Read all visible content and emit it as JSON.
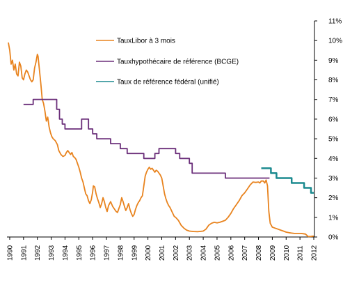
{
  "chart_data": {
    "type": "line",
    "title": "",
    "xlabel": "",
    "ylabel": "",
    "xlim": [
      1989.8,
      2012.05
    ],
    "ylim": [
      0,
      11
    ],
    "y_axis_side": "right",
    "y_tick_suffix": "%",
    "y_ticks": [
      0,
      1,
      2,
      3,
      4,
      5,
      6,
      7,
      8,
      9,
      10,
      11
    ],
    "x_tick_labels": [
      "1990",
      "1991",
      "1992",
      "1993",
      "1994",
      "1995",
      "1996",
      "1997",
      "1998",
      "1999",
      "2000",
      "2001",
      "2002",
      "2003",
      "2004",
      "2005",
      "2006",
      "2007",
      "2008",
      "2009",
      "2010",
      "2011",
      "2012"
    ],
    "grid": false,
    "legend_position": "top-center",
    "series": [
      {
        "name": "TauxLibor à 3 mois",
        "color": "#E8831E",
        "points": [
          [
            1989.9,
            9.9
          ],
          [
            1990.0,
            9.5
          ],
          [
            1990.1,
            8.8
          ],
          [
            1990.2,
            9.0
          ],
          [
            1990.3,
            8.5
          ],
          [
            1990.4,
            8.8
          ],
          [
            1990.5,
            8.3
          ],
          [
            1990.6,
            8.2
          ],
          [
            1990.7,
            8.9
          ],
          [
            1990.8,
            8.7
          ],
          [
            1990.9,
            8.1
          ],
          [
            1991.0,
            8.0
          ],
          [
            1991.1,
            8.3
          ],
          [
            1991.2,
            8.5
          ],
          [
            1991.3,
            8.4
          ],
          [
            1991.4,
            8.2
          ],
          [
            1991.5,
            8.0
          ],
          [
            1991.6,
            7.9
          ],
          [
            1991.7,
            8.0
          ],
          [
            1991.8,
            8.6
          ],
          [
            1991.9,
            8.9
          ],
          [
            1992.0,
            9.3
          ],
          [
            1992.05,
            9.2
          ],
          [
            1992.15,
            8.5
          ],
          [
            1992.25,
            7.8
          ],
          [
            1992.35,
            7.0
          ],
          [
            1992.45,
            6.8
          ],
          [
            1992.55,
            6.4
          ],
          [
            1992.65,
            5.9
          ],
          [
            1992.75,
            6.1
          ],
          [
            1992.85,
            5.6
          ],
          [
            1992.95,
            5.3
          ],
          [
            1993.05,
            5.1
          ],
          [
            1993.15,
            5.0
          ],
          [
            1993.3,
            4.9
          ],
          [
            1993.45,
            4.7
          ],
          [
            1993.55,
            4.4
          ],
          [
            1993.7,
            4.2
          ],
          [
            1993.85,
            4.1
          ],
          [
            1994.0,
            4.15
          ],
          [
            1994.1,
            4.3
          ],
          [
            1994.2,
            4.4
          ],
          [
            1994.3,
            4.3
          ],
          [
            1994.4,
            4.2
          ],
          [
            1994.5,
            4.3
          ],
          [
            1994.6,
            4.1
          ],
          [
            1994.7,
            4.05
          ],
          [
            1994.8,
            3.95
          ],
          [
            1994.9,
            3.75
          ],
          [
            1995.0,
            3.55
          ],
          [
            1995.1,
            3.3
          ],
          [
            1995.2,
            3.0
          ],
          [
            1995.3,
            2.8
          ],
          [
            1995.4,
            2.5
          ],
          [
            1995.5,
            2.2
          ],
          [
            1995.6,
            2.1
          ],
          [
            1995.7,
            1.85
          ],
          [
            1995.8,
            1.7
          ],
          [
            1995.9,
            1.9
          ],
          [
            1996.0,
            2.3
          ],
          [
            1996.05,
            2.6
          ],
          [
            1996.15,
            2.55
          ],
          [
            1996.25,
            2.2
          ],
          [
            1996.35,
            1.95
          ],
          [
            1996.45,
            1.75
          ],
          [
            1996.55,
            1.5
          ],
          [
            1996.65,
            1.7
          ],
          [
            1996.75,
            2.0
          ],
          [
            1996.85,
            1.8
          ],
          [
            1996.95,
            1.5
          ],
          [
            1997.05,
            1.3
          ],
          [
            1997.15,
            1.6
          ],
          [
            1997.3,
            1.8
          ],
          [
            1997.45,
            1.55
          ],
          [
            1997.6,
            1.4
          ],
          [
            1997.7,
            1.3
          ],
          [
            1997.8,
            1.25
          ],
          [
            1997.9,
            1.45
          ],
          [
            1998.0,
            1.65
          ],
          [
            1998.1,
            2.0
          ],
          [
            1998.2,
            1.8
          ],
          [
            1998.3,
            1.55
          ],
          [
            1998.4,
            1.35
          ],
          [
            1998.5,
            1.5
          ],
          [
            1998.6,
            1.7
          ],
          [
            1998.7,
            1.4
          ],
          [
            1998.8,
            1.2
          ],
          [
            1998.9,
            1.05
          ],
          [
            1999.0,
            1.15
          ],
          [
            1999.1,
            1.4
          ],
          [
            1999.2,
            1.6
          ],
          [
            1999.3,
            1.75
          ],
          [
            1999.4,
            1.85
          ],
          [
            1999.5,
            2.0
          ],
          [
            1999.6,
            2.1
          ],
          [
            1999.7,
            2.6
          ],
          [
            1999.8,
            3.1
          ],
          [
            1999.9,
            3.3
          ],
          [
            2000.0,
            3.45
          ],
          [
            2000.1,
            3.55
          ],
          [
            2000.2,
            3.45
          ],
          [
            2000.3,
            3.5
          ],
          [
            2000.4,
            3.4
          ],
          [
            2000.5,
            3.3
          ],
          [
            2000.6,
            3.4
          ],
          [
            2000.7,
            3.35
          ],
          [
            2000.8,
            3.25
          ],
          [
            2000.9,
            3.15
          ],
          [
            2001.0,
            3.0
          ],
          [
            2001.1,
            2.6
          ],
          [
            2001.2,
            2.2
          ],
          [
            2001.3,
            1.95
          ],
          [
            2001.4,
            1.75
          ],
          [
            2001.5,
            1.6
          ],
          [
            2001.6,
            1.5
          ],
          [
            2001.7,
            1.35
          ],
          [
            2001.8,
            1.2
          ],
          [
            2001.9,
            1.05
          ],
          [
            2002.0,
            1.0
          ],
          [
            2002.2,
            0.85
          ],
          [
            2002.4,
            0.6
          ],
          [
            2002.6,
            0.45
          ],
          [
            2002.8,
            0.35
          ],
          [
            2003.0,
            0.3
          ],
          [
            2003.3,
            0.28
          ],
          [
            2003.6,
            0.27
          ],
          [
            2004.0,
            0.3
          ],
          [
            2004.2,
            0.4
          ],
          [
            2004.4,
            0.6
          ],
          [
            2004.6,
            0.7
          ],
          [
            2004.8,
            0.75
          ],
          [
            2005.0,
            0.72
          ],
          [
            2005.2,
            0.75
          ],
          [
            2005.4,
            0.8
          ],
          [
            2005.6,
            0.85
          ],
          [
            2005.8,
            1.0
          ],
          [
            2006.0,
            1.2
          ],
          [
            2006.2,
            1.45
          ],
          [
            2006.4,
            1.65
          ],
          [
            2006.6,
            1.85
          ],
          [
            2006.8,
            2.1
          ],
          [
            2007.0,
            2.25
          ],
          [
            2007.2,
            2.45
          ],
          [
            2007.4,
            2.65
          ],
          [
            2007.6,
            2.8
          ],
          [
            2007.8,
            2.78
          ],
          [
            2008.0,
            2.8
          ],
          [
            2008.1,
            2.75
          ],
          [
            2008.2,
            2.85
          ],
          [
            2008.35,
            2.85
          ],
          [
            2008.45,
            2.75
          ],
          [
            2008.55,
            2.9
          ],
          [
            2008.65,
            2.6
          ],
          [
            2008.75,
            1.3
          ],
          [
            2008.85,
            0.7
          ],
          [
            2009.0,
            0.5
          ],
          [
            2009.2,
            0.45
          ],
          [
            2009.4,
            0.4
          ],
          [
            2009.6,
            0.35
          ],
          [
            2009.8,
            0.3
          ],
          [
            2010.0,
            0.25
          ],
          [
            2010.2,
            0.22
          ],
          [
            2010.4,
            0.2
          ],
          [
            2010.6,
            0.18
          ],
          [
            2010.8,
            0.18
          ],
          [
            2011.0,
            0.18
          ],
          [
            2011.2,
            0.17
          ],
          [
            2011.4,
            0.15
          ],
          [
            2011.5,
            0.08
          ],
          [
            2011.6,
            0.02
          ],
          [
            2011.8,
            0.03
          ],
          [
            2012.0,
            0.05
          ]
        ]
      },
      {
        "name": "Tauxhypothécaire de référence (BCGE)",
        "color": "#6B2F7A",
        "points": [
          [
            1991.0,
            6.75
          ],
          [
            1991.7,
            6.75
          ],
          [
            1991.7,
            7.0
          ],
          [
            1993.4,
            7.0
          ],
          [
            1993.4,
            6.5
          ],
          [
            1993.6,
            6.5
          ],
          [
            1993.6,
            6.0
          ],
          [
            1993.8,
            6.0
          ],
          [
            1993.8,
            5.75
          ],
          [
            1994.0,
            5.75
          ],
          [
            1994.0,
            5.5
          ],
          [
            1995.2,
            5.5
          ],
          [
            1995.2,
            6.0
          ],
          [
            1995.7,
            6.0
          ],
          [
            1995.7,
            5.5
          ],
          [
            1996.0,
            5.5
          ],
          [
            1996.0,
            5.25
          ],
          [
            1996.3,
            5.25
          ],
          [
            1996.3,
            5.0
          ],
          [
            1997.3,
            5.0
          ],
          [
            1997.3,
            4.75
          ],
          [
            1998.0,
            4.75
          ],
          [
            1998.0,
            4.5
          ],
          [
            1998.5,
            4.5
          ],
          [
            1998.5,
            4.25
          ],
          [
            1999.7,
            4.25
          ],
          [
            1999.7,
            4.0
          ],
          [
            2000.5,
            4.0
          ],
          [
            2000.5,
            4.25
          ],
          [
            2000.8,
            4.25
          ],
          [
            2000.8,
            4.5
          ],
          [
            2002.0,
            4.5
          ],
          [
            2002.0,
            4.25
          ],
          [
            2002.3,
            4.25
          ],
          [
            2002.3,
            4.0
          ],
          [
            2003.0,
            4.0
          ],
          [
            2003.0,
            3.75
          ],
          [
            2003.2,
            3.75
          ],
          [
            2003.2,
            3.25
          ],
          [
            2005.6,
            3.25
          ],
          [
            2005.6,
            3.0
          ],
          [
            2008.8,
            3.0
          ]
        ]
      },
      {
        "name": "Taux de référence fédéral (unifié)",
        "color": "#1B8A8F",
        "points": [
          [
            2008.2,
            3.5
          ],
          [
            2008.9,
            3.5
          ],
          [
            2008.9,
            3.25
          ],
          [
            2009.3,
            3.25
          ],
          [
            2009.3,
            3.0
          ],
          [
            2010.4,
            3.0
          ],
          [
            2010.4,
            2.75
          ],
          [
            2011.3,
            2.75
          ],
          [
            2011.3,
            2.5
          ],
          [
            2011.8,
            2.5
          ],
          [
            2011.8,
            2.25
          ],
          [
            2012.0,
            2.25
          ]
        ]
      }
    ]
  }
}
